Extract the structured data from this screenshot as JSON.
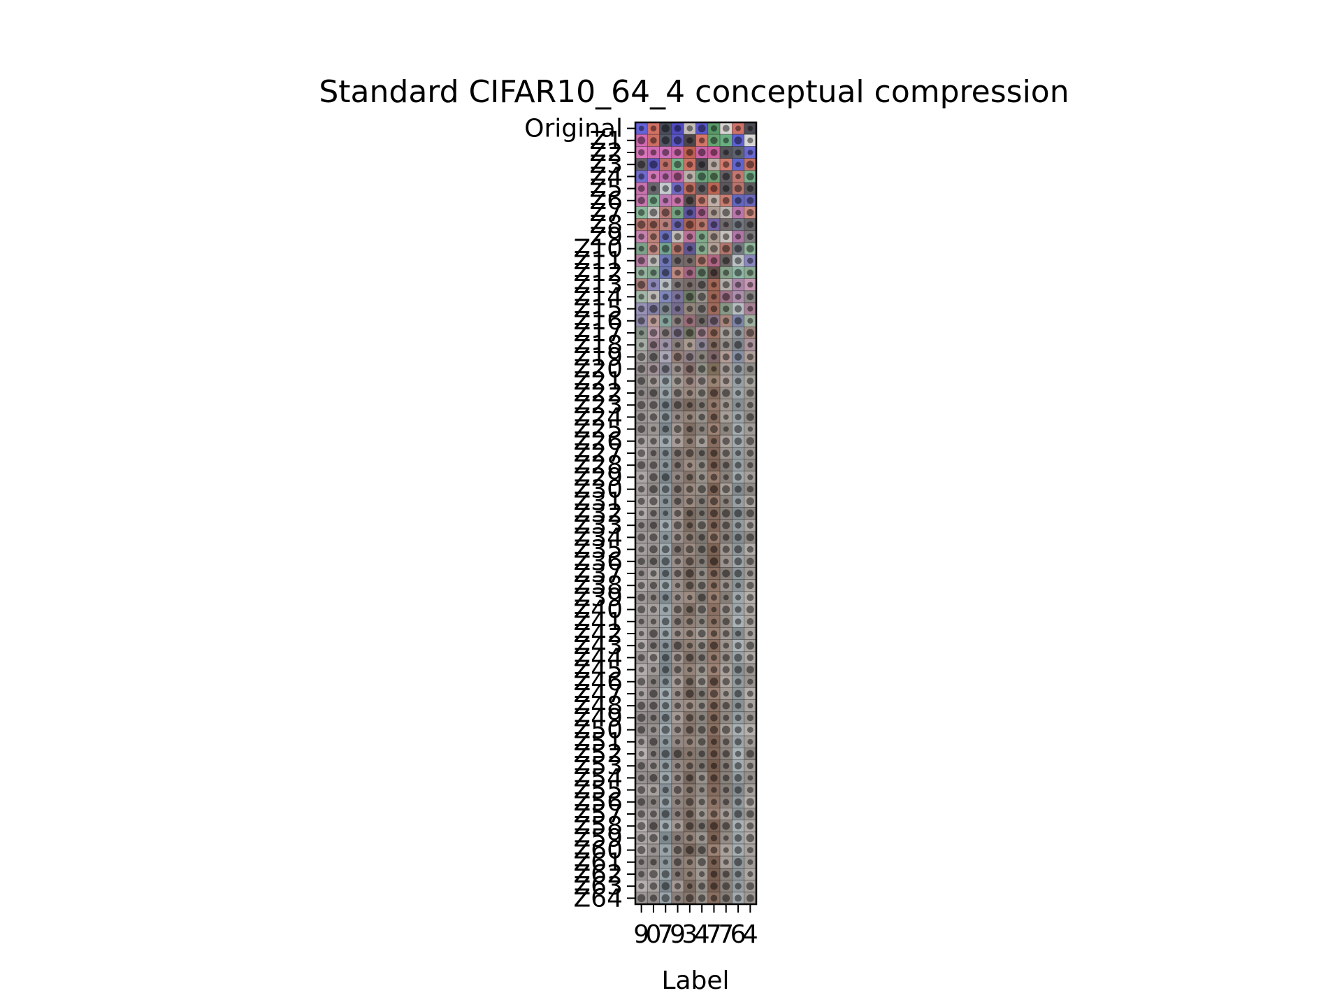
{
  "chart_data": {
    "type": "heatmap",
    "title": "Standard CIFAR10_64_4 conceptual compression",
    "xlabel": "Label",
    "ylabel": "",
    "x_tick_labels": [
      "9",
      "0",
      "7",
      "9",
      "3",
      "4",
      "7",
      "7",
      "6",
      "4"
    ],
    "y_tick_labels": [
      "Original",
      "Z1",
      "Z2",
      "Z3",
      "Z4",
      "Z5",
      "Z6",
      "Z7",
      "Z8",
      "Z9",
      "Z10",
      "Z11",
      "Z12",
      "Z13",
      "Z14",
      "Z15",
      "Z16",
      "Z17",
      "Z18",
      "Z19",
      "Z20",
      "Z21",
      "Z22",
      "Z23",
      "Z24",
      "Z25",
      "Z26",
      "Z27",
      "Z28",
      "Z29",
      "Z30",
      "Z31",
      "Z32",
      "Z33",
      "Z34",
      "Z35",
      "Z36",
      "Z37",
      "Z38",
      "Z39",
      "Z40",
      "Z41",
      "Z42",
      "Z43",
      "Z44",
      "Z45",
      "Z46",
      "Z47",
      "Z48",
      "Z49",
      "Z50",
      "Z51",
      "Z52",
      "Z53",
      "Z54",
      "Z55",
      "Z56",
      "Z57",
      "Z58",
      "Z59",
      "Z60",
      "Z61",
      "Z62",
      "Z63",
      "Z64"
    ],
    "columns": 10,
    "rows": 65,
    "column_tints": [
      "#a7a0a0",
      "#9b9694",
      "#8f9aa0",
      "#948985",
      "#8a7a70",
      "#918a84",
      "#8a7062",
      "#99908a",
      "#98a0a4",
      "#a29d98"
    ],
    "grid": false,
    "legend": "none"
  }
}
